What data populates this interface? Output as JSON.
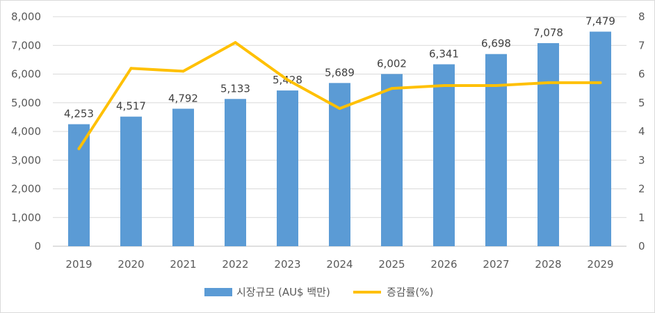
{
  "chart_data": {
    "type": "bar",
    "categories": [
      "2019",
      "2020",
      "2021",
      "2022",
      "2023",
      "2024",
      "2025",
      "2026",
      "2027",
      "2028",
      "2029"
    ],
    "series": [
      {
        "name": "시장규모 (AU$ 백만)",
        "kind": "bar",
        "axis": "left",
        "color": "#5b9bd5",
        "values": [
          4253,
          4517,
          4792,
          5133,
          5428,
          5689,
          6002,
          6341,
          6698,
          7078,
          7479
        ],
        "labels": [
          "4,253",
          "4,517",
          "4,792",
          "5,133",
          "5,428",
          "5,689",
          "6,002",
          "6,341",
          "6,698",
          "7,078",
          "7,479"
        ]
      },
      {
        "name": "증감률(%)",
        "kind": "line",
        "axis": "right",
        "color": "#ffc000",
        "values": [
          3.4,
          6.2,
          6.1,
          7.1,
          5.8,
          4.8,
          5.5,
          5.6,
          5.6,
          5.7,
          5.7
        ]
      }
    ],
    "y_left": {
      "ylim": [
        0,
        8000
      ],
      "ticks": [
        0,
        1000,
        2000,
        3000,
        4000,
        5000,
        6000,
        7000,
        8000
      ],
      "tick_labels": [
        "0",
        "1,000",
        "2,000",
        "3,000",
        "4,000",
        "5,000",
        "6,000",
        "7,000",
        "8,000"
      ]
    },
    "y_right": {
      "ylim": [
        0,
        8
      ],
      "ticks": [
        0,
        1,
        2,
        3,
        4,
        5,
        6,
        7,
        8
      ],
      "tick_labels": [
        "0",
        "1",
        "2",
        "3",
        "4",
        "5",
        "6",
        "7",
        "8"
      ]
    },
    "grid": true,
    "legend_position": "bottom"
  }
}
